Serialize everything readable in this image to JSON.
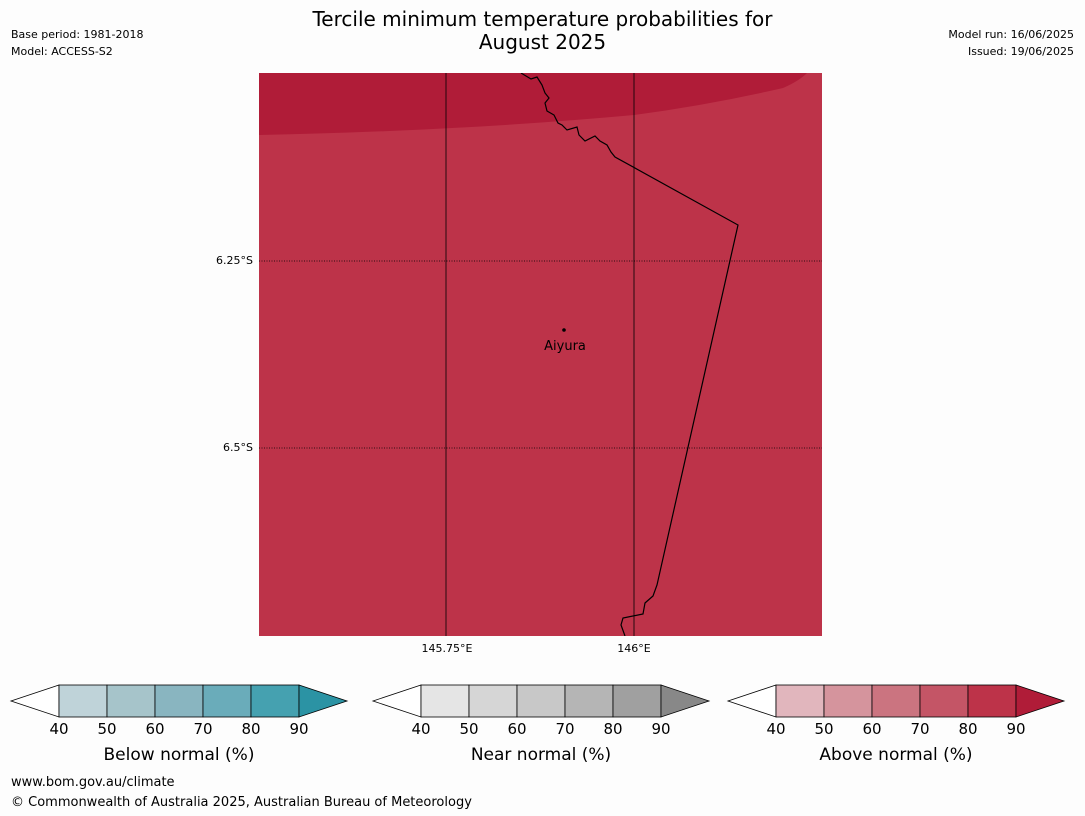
{
  "title_line1": "Tercile minimum temperature probabilities for",
  "title_line2": "August 2025",
  "meta_left": {
    "base_period": "Base period: 1981-2018",
    "model": "Model: ACCESS-S2"
  },
  "meta_right": {
    "model_run": "Model run: 16/06/2025",
    "issued": "Issued: 19/06/2025"
  },
  "map": {
    "lat_labels": [
      "6.25°S",
      "6.5°S"
    ],
    "lon_labels": [
      "145.75°E",
      "146°E"
    ],
    "place": {
      "name": "Aiyura"
    },
    "colors": {
      "main": "#bd3349",
      "top_band": "#b01c38"
    }
  },
  "legends": [
    {
      "label": "Below normal (%)",
      "ticks": [
        "40",
        "50",
        "60",
        "70",
        "80",
        "90"
      ],
      "colors": [
        "#bfd3d9",
        "#a6c4ca",
        "#89b5c0",
        "#6aacba",
        "#45a1b0"
      ],
      "arrow": "#2b93a4"
    },
    {
      "label": "Near normal (%)",
      "ticks": [
        "40",
        "50",
        "60",
        "70",
        "80",
        "90"
      ],
      "colors": [
        "#e5e5e5",
        "#d6d6d6",
        "#c8c8c8",
        "#b5b5b5",
        "#a0a0a0"
      ],
      "arrow": "#888888"
    },
    {
      "label": "Above normal (%)",
      "ticks": [
        "40",
        "50",
        "60",
        "70",
        "80",
        "90"
      ],
      "colors": [
        "#e1b6bd",
        "#d5949d",
        "#cb7480",
        "#c45566",
        "#bd3349"
      ],
      "arrow": "#b01c38"
    }
  ],
  "footer": {
    "url": "www.bom.gov.au/climate",
    "copyright": "© Commonwealth of Australia 2025, Australian Bureau of Meteorology"
  }
}
